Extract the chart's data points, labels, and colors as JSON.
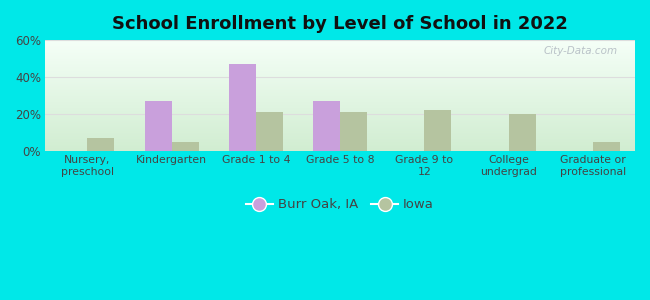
{
  "title": "School Enrollment by Level of School in 2022",
  "categories": [
    "Nursery,\npreschool",
    "Kindergarten",
    "Grade 1 to 4",
    "Grade 5 to 8",
    "Grade 9 to\n12",
    "College\nundergrad",
    "Graduate or\nprofessional"
  ],
  "burr_oak": [
    0,
    27,
    47,
    27,
    0,
    0,
    0
  ],
  "iowa": [
    7,
    5,
    21,
    21,
    22,
    20,
    5
  ],
  "burr_oak_color": "#c9a0dc",
  "iowa_color": "#b5c4a0",
  "background_outer": "#00e8e8",
  "title_color": "#111111",
  "axis_label_color": "#444444",
  "tick_color": "#444444",
  "ylim": [
    0,
    60
  ],
  "yticks": [
    0,
    20,
    40,
    60
  ],
  "ytick_labels": [
    "0%",
    "20%",
    "40%",
    "60%"
  ],
  "bar_width": 0.32,
  "legend_burr_oak": "Burr Oak, IA",
  "legend_iowa": "Iowa",
  "watermark": "City-Data.com",
  "grid_color": "#dddddd"
}
